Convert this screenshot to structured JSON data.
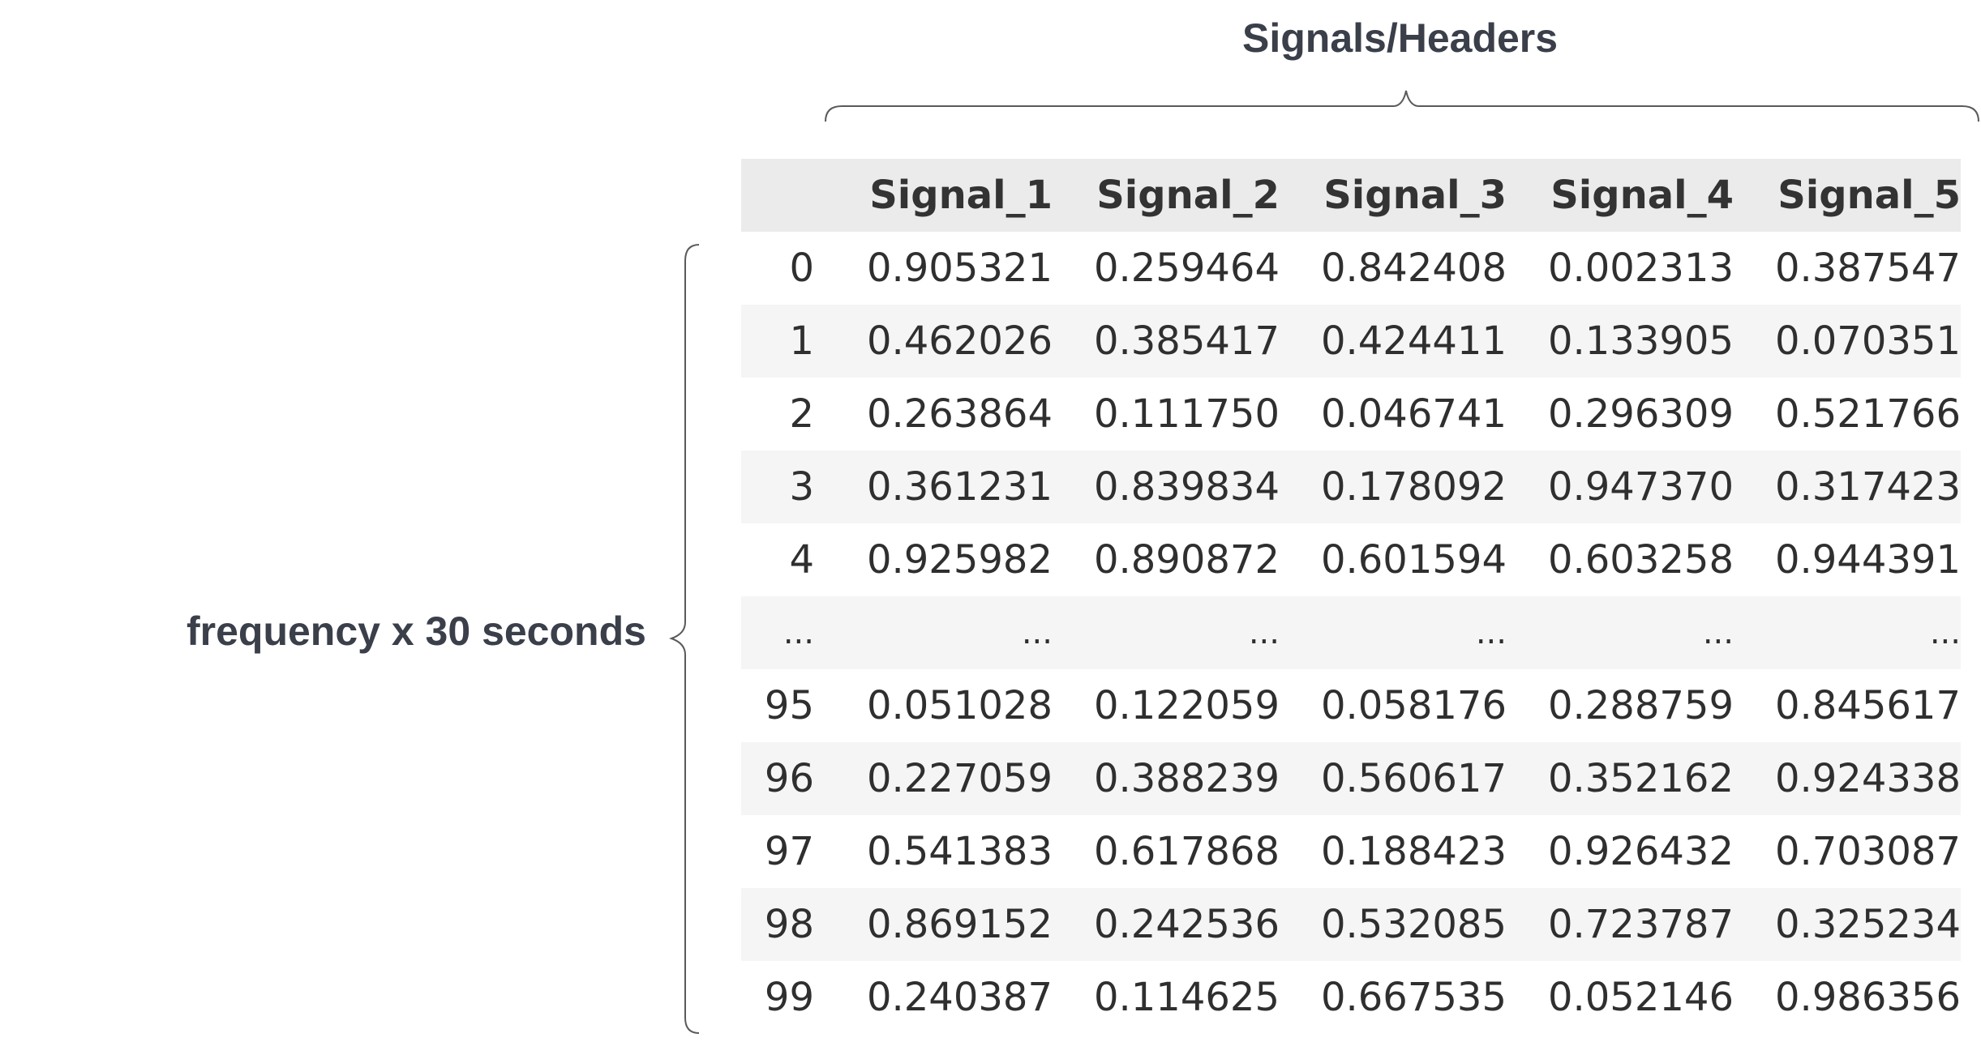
{
  "top_label": "Signals/Headers",
  "side_label": "frequency x 30 seconds",
  "table": {
    "columns": [
      "",
      "Signal_1",
      "Signal_2",
      "Signal_3",
      "Signal_4",
      "Signal_5"
    ],
    "rows": [
      [
        "0",
        "0.905321",
        "0.259464",
        "0.842408",
        "0.002313",
        "0.387547"
      ],
      [
        "1",
        "0.462026",
        "0.385417",
        "0.424411",
        "0.133905",
        "0.070351"
      ],
      [
        "2",
        "0.263864",
        "0.111750",
        "0.046741",
        "0.296309",
        "0.521766"
      ],
      [
        "3",
        "0.361231",
        "0.839834",
        "0.178092",
        "0.947370",
        "0.317423"
      ],
      [
        "4",
        "0.925982",
        "0.890872",
        "0.601594",
        "0.603258",
        "0.944391"
      ],
      [
        "...",
        "...",
        "...",
        "...",
        "...",
        "..."
      ],
      [
        "95",
        "0.051028",
        "0.122059",
        "0.058176",
        "0.288759",
        "0.845617"
      ],
      [
        "96",
        "0.227059",
        "0.388239",
        "0.560617",
        "0.352162",
        "0.924338"
      ],
      [
        "97",
        "0.541383",
        "0.617868",
        "0.188423",
        "0.926432",
        "0.703087"
      ],
      [
        "98",
        "0.869152",
        "0.242536",
        "0.532085",
        "0.723787",
        "0.325234"
      ],
      [
        "99",
        "0.240387",
        "0.114625",
        "0.667535",
        "0.052146",
        "0.986356"
      ]
    ]
  }
}
